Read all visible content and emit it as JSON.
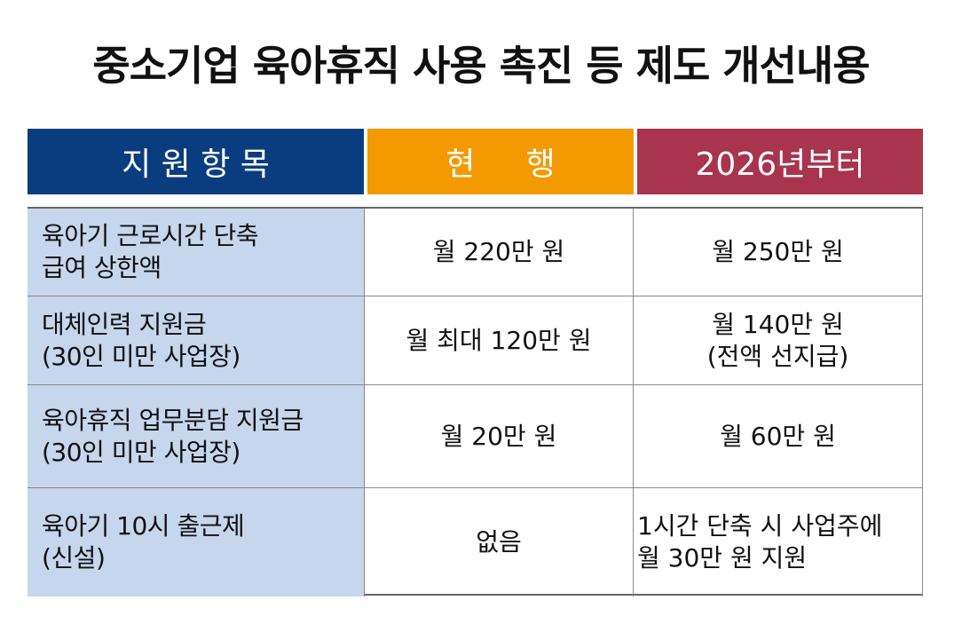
{
  "title": "중소기업 육아휴직 사용 촉진 등 제도 개선내용",
  "headers": {
    "item": "지 원 항 목",
    "current": "현     행",
    "new": "2026년부터"
  },
  "rows": [
    {
      "item": [
        "육아기 근로시간 단축",
        "급여 상한액"
      ],
      "current": [
        "월 220만 원"
      ],
      "new": [
        "월 250만 원"
      ]
    },
    {
      "item": [
        "대체인력 지원금",
        "(30인 미만 사업장)"
      ],
      "current": [
        "월 최대 120만 원"
      ],
      "new": [
        "월 140만 원",
        "(전액 선지급)"
      ]
    },
    {
      "item": [
        "육아휴직 업무분담 지원금",
        "(30인 미만 사업장)"
      ],
      "current": [
        "월 20만 원"
      ],
      "new": [
        "월 60만 원"
      ]
    },
    {
      "item": [
        "육아기 10시 출근제",
        "(신설)"
      ],
      "current": [
        "없음"
      ],
      "new": [
        "1시간 단축 시 사업주에",
        "월 30만 원 지원"
      ]
    }
  ]
}
